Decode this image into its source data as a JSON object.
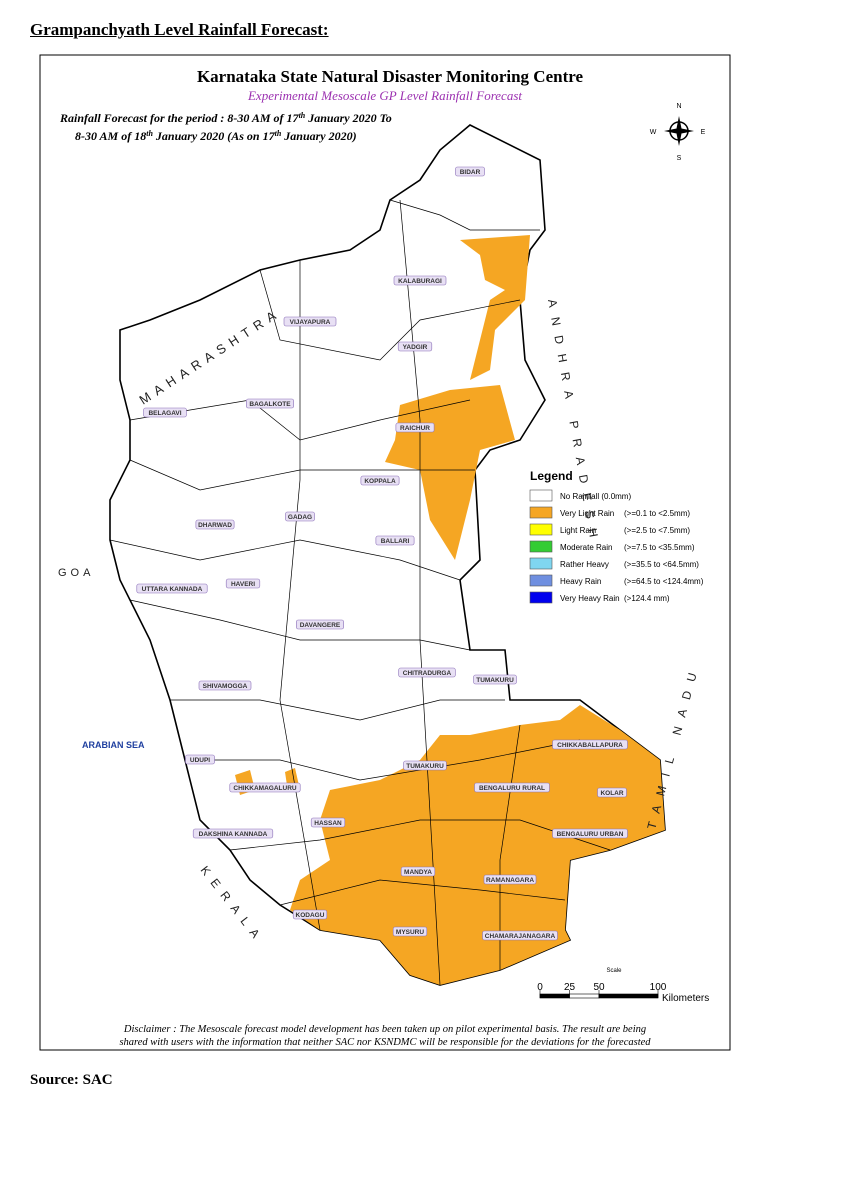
{
  "header": {
    "title": "Grampanchyath Level Rainfall Forecast:"
  },
  "map": {
    "title": "Karnataka State Natural Disaster Monitoring Centre",
    "subtitle": "Experimental Mesoscale GP Level Rainfall Forecast",
    "period_line1": [
      "Rainfall Forecast for the period : 8-30 AM of 17",
      "th",
      " January 2020 To"
    ],
    "period_line2": [
      "8-30 AM of 18",
      "th",
      " January 2020 (As on 17",
      "th",
      " January 2020)"
    ],
    "compass": {
      "n": "N",
      "e": "E",
      "s": "S",
      "w": "W"
    },
    "legend": {
      "title": "Legend",
      "items": [
        {
          "label": "No Rainfall (0.0mm)",
          "range": "",
          "color": "#ffffff"
        },
        {
          "label": "Very Light Rain",
          "range": "(>=0.1 to <2.5mm)",
          "color": "#f5a623"
        },
        {
          "label": "Light Rain",
          "range": "(>=2.5 to <7.5mm)",
          "color": "#ffff00"
        },
        {
          "label": "Moderate Rain",
          "range": "(>=7.5 to <35.5mm)",
          "color": "#33cc33"
        },
        {
          "label": "Rather Heavy",
          "range": "(>=35.5 to <64.5mm)",
          "color": "#7fd6f0"
        },
        {
          "label": "Heavy Rain",
          "range": "(>=64.5 to <124.4mm)",
          "color": "#6f8fe0"
        },
        {
          "label": "Very Heavy Rain",
          "range": "(>124.4 mm)",
          "color": "#0000ee"
        }
      ]
    },
    "districts": [
      "BIDAR",
      "KALABURAGI",
      "VIJAYAPURA",
      "YADGIR",
      "BAGALKOTE",
      "BELAGAVI",
      "RAICHUR",
      "KOPPALA",
      "GADAG",
      "DHARWAD",
      "BALLARI",
      "HAVERI",
      "UTTARA KANNADA",
      "DAVANGERE",
      "CHITRADURGA",
      "TUMAKURU",
      "SHIVAMOGGA",
      "UDUPI",
      "CHIKKAMAGALURU",
      "TUMAKURU",
      "HASSAN",
      "DAKSHINA KANNADA",
      "CHIKKABALLAPURA",
      "BENGALURU RURAL",
      "KOLAR",
      "BENGALURU URBAN",
      "KODAGU",
      "MANDYA",
      "RAMANAGARA",
      "MYSURU",
      "CHAMARAJANAGARA"
    ],
    "neighbors": {
      "maharashtra": "MAHARASHTRA",
      "andhra": "ANDHRA PRADESH",
      "tamil": "TAMIL NADU",
      "kerala": "KERALA",
      "goa": "GOA",
      "sea": "ARABIAN SEA"
    },
    "scale": {
      "title": "Scale",
      "ticks": [
        0,
        25,
        50,
        100
      ],
      "unit": "Kilometers"
    },
    "disclaimer": [
      "Disclaimer : The Mesoscale forecast model development has been taken up on pilot experimental basis. The result are being",
      "shared with users with the information that neither SAC nor KSNDMC will be responsible  for the deviations for the forecasted"
    ]
  },
  "footer": {
    "source": "Source: SAC"
  }
}
